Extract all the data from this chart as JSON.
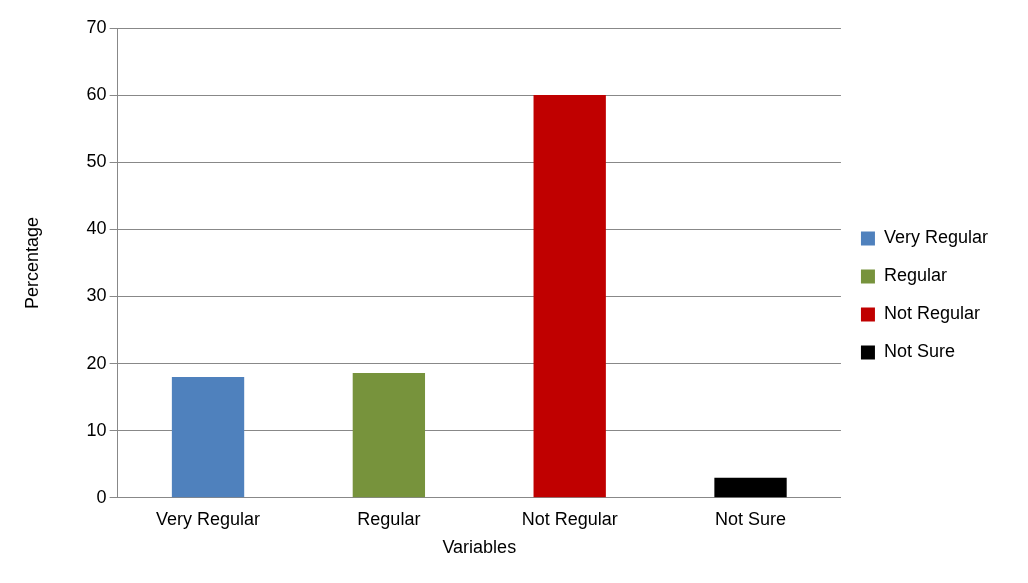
{
  "chart_data": {
    "type": "bar",
    "xlabel": "Variables",
    "ylabel": "Percentage",
    "categories": [
      "Very Regular",
      "Regular",
      "Not Regular",
      "Not Sure"
    ],
    "series": [
      {
        "name": "Very Regular",
        "color": "#4f81bd",
        "values": [
          18,
          null,
          null,
          null
        ]
      },
      {
        "name": "Regular",
        "color": "#77933c",
        "values": [
          null,
          18.6,
          null,
          null
        ]
      },
      {
        "name": "Not Regular",
        "color": "#c00000",
        "values": [
          null,
          null,
          60,
          null
        ]
      },
      {
        "name": "Not Sure",
        "color": "#000000",
        "values": [
          null,
          null,
          null,
          3
        ]
      }
    ],
    "ylim": [
      0,
      70
    ],
    "yticks": [
      0,
      10,
      20,
      30,
      40,
      50,
      60,
      70
    ],
    "grid": "y",
    "legend": "right"
  }
}
